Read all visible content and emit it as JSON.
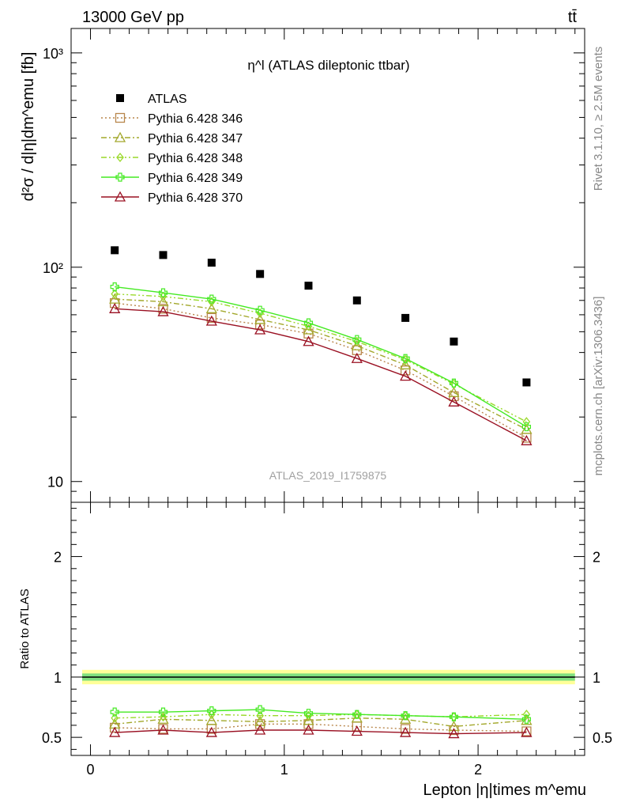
{
  "header": {
    "left": "13000 GeV pp",
    "right": "tt̄"
  },
  "side_labels": {
    "rivet": "Rivet 3.1.10, ≥ 2.5M events",
    "mcplots": "mcplots.cern.ch [arXiv:1306.3436]"
  },
  "chart_data": [
    {
      "type": "scatter",
      "panel": "main",
      "title": "η^l (ATLAS dileptonic ttbar)",
      "watermark": "ATLAS_2019_I1759875",
      "ylabel": "d²σ / d|η|dm^emu [fb]",
      "yscale": "log",
      "ylim": [
        8,
        1300
      ],
      "xlim": [
        -0.1,
        2.55
      ],
      "y_ticks": [
        10,
        100,
        1000
      ],
      "y_tick_labels": [
        "10",
        "10²",
        "10³"
      ],
      "legend_position": "top-left",
      "x": [
        0.125,
        0.375,
        0.625,
        0.875,
        1.125,
        1.375,
        1.625,
        1.875,
        2.25
      ],
      "series": [
        {
          "name": "ATLAS",
          "color": "#000000",
          "marker": "filled-square",
          "line": "none",
          "values": [
            120,
            114,
            105,
            93,
            82,
            70,
            58,
            45,
            29
          ]
        },
        {
          "name": "Pythia 6.428 346",
          "color": "#b8864b",
          "marker": "open-square",
          "line": "dotted",
          "values": [
            68,
            64,
            58,
            54,
            49,
            41,
            33,
            25,
            16
          ]
        },
        {
          "name": "Pythia 6.428 347",
          "color": "#a3a82c",
          "marker": "open-triangle",
          "line": "dash-dot",
          "values": [
            71,
            69,
            64,
            57,
            51,
            43,
            35,
            26,
            17.5
          ]
        },
        {
          "name": "Pythia 6.428 348",
          "color": "#9ad92a",
          "marker": "open-diamond",
          "line": "dash-dot-dot",
          "values": [
            75,
            73,
            69,
            61,
            53,
            45,
            37,
            28.5,
            19
          ]
        },
        {
          "name": "Pythia 6.428 349",
          "color": "#44ea22",
          "marker": "open-cross",
          "line": "solid",
          "values": [
            81,
            76,
            71,
            63,
            55,
            46,
            37.5,
            28.8,
            18
          ]
        },
        {
          "name": "Pythia 6.428 370",
          "color": "#9a1022",
          "marker": "open-triangle",
          "line": "solid",
          "values": [
            64,
            62,
            56,
            51,
            45,
            37.5,
            31,
            23.5,
            15.5
          ]
        }
      ]
    },
    {
      "type": "line",
      "panel": "ratio",
      "ylabel": "Ratio to ATLAS",
      "xlabel": "Lepton |η|times m^emu",
      "ylim": [
        0.35,
        2.45
      ],
      "xlim": [
        -0.1,
        2.55
      ],
      "x_ticks": [
        0,
        1,
        2
      ],
      "x_tick_labels": [
        "0",
        "1",
        "2"
      ],
      "y_ticks": [
        0.5,
        1,
        2
      ],
      "y_tick_labels": [
        "0.5",
        "1",
        "2"
      ],
      "reference": {
        "y": 1.0,
        "band_outer": [
          0.94,
          1.06
        ],
        "band_inner": [
          0.97,
          1.03
        ],
        "band_outer_color": "#ffff99",
        "band_inner_color": "#7fe07f"
      },
      "x": [
        0.125,
        0.375,
        0.625,
        0.875,
        1.125,
        1.375,
        1.625,
        1.875,
        2.25
      ],
      "series": [
        {
          "name": "Pythia 6.428 346",
          "values": [
            0.58,
            0.57,
            0.57,
            0.61,
            0.61,
            0.59,
            0.57,
            0.56,
            0.55
          ]
        },
        {
          "name": "Pythia 6.428 347",
          "values": [
            0.61,
            0.65,
            0.64,
            0.63,
            0.64,
            0.66,
            0.65,
            0.59,
            0.64
          ]
        },
        {
          "name": "Pythia 6.428 348",
          "values": [
            0.66,
            0.67,
            0.69,
            0.68,
            0.68,
            0.69,
            0.68,
            0.67,
            0.69
          ]
        },
        {
          "name": "Pythia 6.428 349",
          "values": [
            0.71,
            0.71,
            0.72,
            0.73,
            0.7,
            0.69,
            0.68,
            0.67,
            0.65
          ]
        },
        {
          "name": "Pythia 6.428 370",
          "values": [
            0.54,
            0.56,
            0.54,
            0.56,
            0.56,
            0.55,
            0.54,
            0.53,
            0.54
          ]
        }
      ]
    }
  ]
}
